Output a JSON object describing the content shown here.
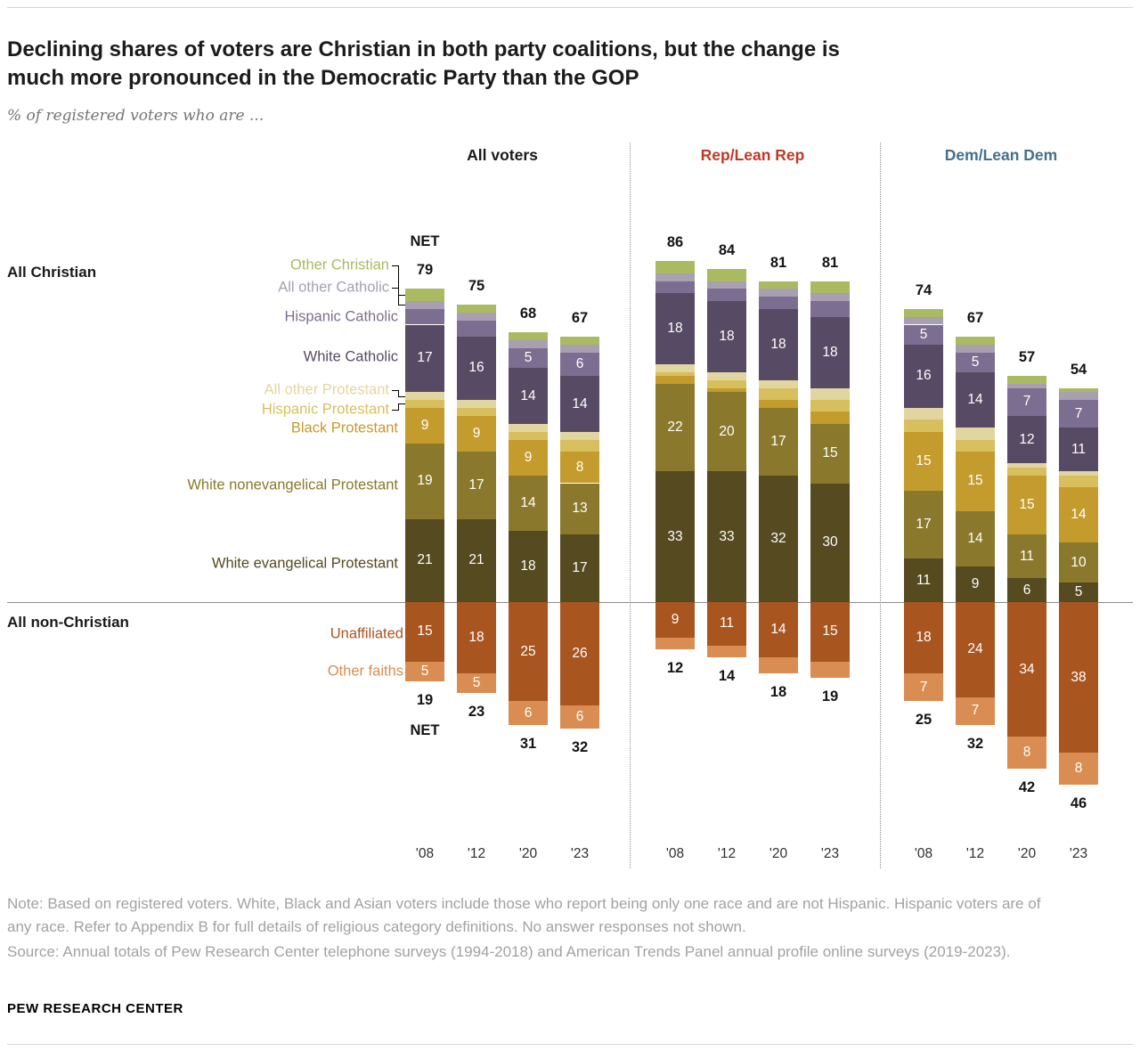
{
  "header": {
    "title": "Declining shares of voters are Christian in both party coalitions, but the change is much more pronounced in the Democratic Party than the GOP",
    "title_lines": [
      "Declining shares of voters are Christian in both party coalitions, but the change is",
      "much more pronounced in the Democratic Party than the GOP"
    ],
    "subtitle": "% of registered voters who are ..."
  },
  "panels": [
    {
      "label": "All voters",
      "color": "#1a1a1a"
    },
    {
      "label": "Rep/Lean Rep",
      "color": "#bf3a27"
    },
    {
      "label": "Dem/Lean Dem",
      "color": "#44708d"
    }
  ],
  "side_labels": {
    "all_christian": "All Christian",
    "all_non_christian": "All non-Christian"
  },
  "net_word": "NET",
  "chart_data": {
    "type": "bar",
    "stacked": true,
    "unit": "% of registered voters",
    "years": [
      "'08",
      "'12",
      "'20",
      "'23"
    ],
    "stack_up": [
      "white_evangelical",
      "white_nonevangelical",
      "black_protestant",
      "hispanic_protestant",
      "all_other_protestant",
      "white_catholic",
      "hispanic_catholic",
      "all_other_catholic",
      "other_christian"
    ],
    "stack_down": [
      "unaffiliated",
      "other_faiths"
    ],
    "label_categories": [
      "hispanic_catholic",
      "white_catholic",
      "black_protestant",
      "white_nonevangelical",
      "white_evangelical",
      "unaffiliated",
      "other_faiths"
    ],
    "label_min": 5,
    "categories": [
      {
        "key": "other_christian",
        "label": "Other Christian",
        "color": "#a9ba61"
      },
      {
        "key": "all_other_catholic",
        "label": "All other Catholic",
        "color": "#a89fb0"
      },
      {
        "key": "hispanic_catholic",
        "label": "Hispanic Catholic",
        "color": "#7c6e90"
      },
      {
        "key": "white_catholic",
        "label": "White Catholic",
        "color": "#564a65"
      },
      {
        "key": "all_other_protestant",
        "label": "All other Protestant",
        "color": "#e2d6a0"
      },
      {
        "key": "hispanic_protestant",
        "label": "Hispanic Protestant",
        "color": "#d8bf5e"
      },
      {
        "key": "black_protestant",
        "label": "Black Protestant",
        "color": "#c49b2d"
      },
      {
        "key": "white_nonevangelical",
        "label": "White nonevangelical Protestant",
        "color": "#8a792c"
      },
      {
        "key": "white_evangelical",
        "label": "White evangelical Protestant",
        "color": "#564a20"
      },
      {
        "key": "unaffiliated",
        "label": "Unaffiliated",
        "color": "#a9551f"
      },
      {
        "key": "other_faiths",
        "label": "Other faiths",
        "color": "#d98d52"
      }
    ],
    "groups": [
      {
        "name": "All voters",
        "bars": [
          {
            "year": "'08",
            "net_christian": 79,
            "net_non_christian": 19,
            "values": {
              "other_christian": 3,
              "all_other_catholic": 2,
              "hispanic_catholic": 4,
              "white_catholic": 17,
              "all_other_protestant": 2,
              "hispanic_protestant": 2,
              "black_protestant": 9,
              "white_nonevangelical": 19,
              "white_evangelical": 21,
              "unaffiliated": 15,
              "other_faiths": 5
            }
          },
          {
            "year": "'12",
            "net_christian": 75,
            "net_non_christian": 23,
            "values": {
              "other_christian": 2,
              "all_other_catholic": 2,
              "hispanic_catholic": 4,
              "white_catholic": 16,
              "all_other_protestant": 2,
              "hispanic_protestant": 2,
              "black_protestant": 9,
              "white_nonevangelical": 17,
              "white_evangelical": 21,
              "unaffiliated": 18,
              "other_faiths": 5
            }
          },
          {
            "year": "'20",
            "net_christian": 68,
            "net_non_christian": 31,
            "values": {
              "other_christian": 2,
              "all_other_catholic": 2,
              "hispanic_catholic": 5,
              "white_catholic": 14,
              "all_other_protestant": 2,
              "hispanic_protestant": 2,
              "black_protestant": 9,
              "white_nonevangelical": 14,
              "white_evangelical": 18,
              "unaffiliated": 25,
              "other_faiths": 6
            }
          },
          {
            "year": "'23",
            "net_christian": 67,
            "net_non_christian": 32,
            "values": {
              "other_christian": 2,
              "all_other_catholic": 2,
              "hispanic_catholic": 6,
              "white_catholic": 14,
              "all_other_protestant": 2,
              "hispanic_protestant": 3,
              "black_protestant": 8,
              "white_nonevangelical": 13,
              "white_evangelical": 17,
              "unaffiliated": 26,
              "other_faiths": 6
            }
          }
        ]
      },
      {
        "name": "Rep/Lean Rep",
        "bars": [
          {
            "year": "'08",
            "net_christian": 86,
            "net_non_christian": 12,
            "values": {
              "other_christian": 3,
              "all_other_catholic": 2,
              "hispanic_catholic": 3,
              "white_catholic": 18,
              "all_other_protestant": 2,
              "hispanic_protestant": 1,
              "black_protestant": 2,
              "white_nonevangelical": 22,
              "white_evangelical": 33,
              "unaffiliated": 9,
              "other_faiths": 3
            }
          },
          {
            "year": "'12",
            "net_christian": 84,
            "net_non_christian": 14,
            "values": {
              "other_christian": 3,
              "all_other_catholic": 2,
              "hispanic_catholic": 3,
              "white_catholic": 18,
              "all_other_protestant": 2,
              "hispanic_protestant": 2,
              "black_protestant": 1,
              "white_nonevangelical": 20,
              "white_evangelical": 33,
              "unaffiliated": 11,
              "other_faiths": 3
            }
          },
          {
            "year": "'20",
            "net_christian": 81,
            "net_non_christian": 18,
            "values": {
              "other_christian": 2,
              "all_other_catholic": 2,
              "hispanic_catholic": 3,
              "white_catholic": 18,
              "all_other_protestant": 2,
              "hispanic_protestant": 3,
              "black_protestant": 2,
              "white_nonevangelical": 17,
              "white_evangelical": 32,
              "unaffiliated": 14,
              "other_faiths": 4
            }
          },
          {
            "year": "'23",
            "net_christian": 81,
            "net_non_christian": 19,
            "values": {
              "other_christian": 3,
              "all_other_catholic": 2,
              "hispanic_catholic": 4,
              "white_catholic": 18,
              "all_other_protestant": 3,
              "hispanic_protestant": 3,
              "black_protestant": 3,
              "white_nonevangelical": 15,
              "white_evangelical": 30,
              "unaffiliated": 15,
              "other_faiths": 4
            }
          }
        ]
      },
      {
        "name": "Dem/Lean Dem",
        "bars": [
          {
            "year": "'08",
            "net_christian": 74,
            "net_non_christian": 25,
            "values": {
              "other_christian": 2,
              "all_other_catholic": 2,
              "hispanic_catholic": 5,
              "white_catholic": 16,
              "all_other_protestant": 3,
              "hispanic_protestant": 3,
              "black_protestant": 15,
              "white_nonevangelical": 17,
              "white_evangelical": 11,
              "unaffiliated": 18,
              "other_faiths": 7
            }
          },
          {
            "year": "'12",
            "net_christian": 67,
            "net_non_christian": 32,
            "values": {
              "other_christian": 2,
              "all_other_catholic": 2,
              "hispanic_catholic": 5,
              "white_catholic": 14,
              "all_other_protestant": 3,
              "hispanic_protestant": 3,
              "black_protestant": 15,
              "white_nonevangelical": 14,
              "white_evangelical": 9,
              "unaffiliated": 24,
              "other_faiths": 7
            }
          },
          {
            "year": "'20",
            "net_christian": 57,
            "net_non_christian": 42,
            "values": {
              "other_christian": 2,
              "all_other_catholic": 1,
              "hispanic_catholic": 7,
              "white_catholic": 12,
              "all_other_protestant": 1,
              "hispanic_protestant": 2,
              "black_protestant": 15,
              "white_nonevangelical": 11,
              "white_evangelical": 6,
              "unaffiliated": 34,
              "other_faiths": 8
            }
          },
          {
            "year": "'23",
            "net_christian": 54,
            "net_non_christian": 46,
            "values": {
              "other_christian": 1,
              "all_other_catholic": 2,
              "hispanic_catholic": 7,
              "white_catholic": 11,
              "all_other_protestant": 1,
              "hispanic_protestant": 3,
              "black_protestant": 14,
              "white_nonevangelical": 10,
              "white_evangelical": 5,
              "unaffiliated": 38,
              "other_faiths": 8
            }
          }
        ]
      }
    ]
  },
  "footer": {
    "note": "Note: Based on registered voters. White, Black and Asian voters include those who report being only one race and are not Hispanic. Hispanic voters are of any race. Refer to Appendix B for full details of religious category definitions. No answer responses not shown.",
    "source": "Source: Annual totals of Pew Research Center telephone surveys (1994-2018) and American Trends Panel annual profile online surveys (2019-2023).",
    "brand": "PEW RESEARCH CENTER"
  }
}
